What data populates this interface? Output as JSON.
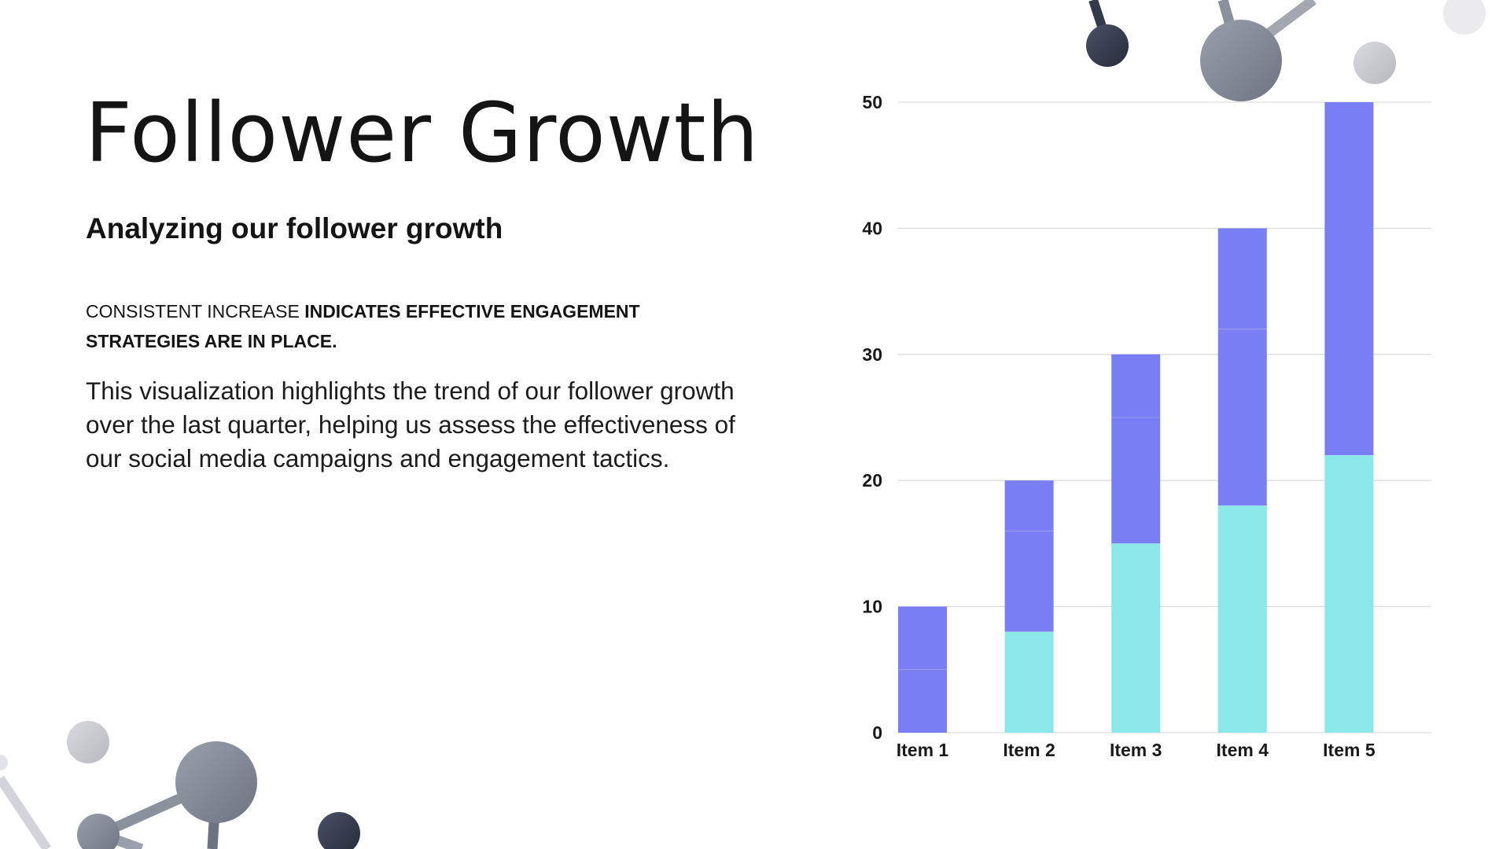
{
  "slide": {
    "title": "Follower Growth",
    "subtitle": "Analyzing our follower growth",
    "headline_regular": "CONSISTENT INCREASE ",
    "headline_bold": "INDICATES EFFECTIVE ENGAGEMENT STRATEGIES ARE IN PLACE.",
    "body": "This visualization highlights the trend of our follower growth over the last quarter, helping us assess the effectiveness of our social media campaigns and engagement tactics."
  },
  "colors": {
    "series_bottom": "#8ae8e8",
    "series_top": "#7a7ef4",
    "gridline": "#dedede",
    "axis_text": "#1a1a1a",
    "decoration_dark": "#333a4c",
    "decoration_mid": "#8a909c",
    "decoration_light": "#c6c8ce"
  },
  "chart_data": {
    "type": "bar",
    "stacked": true,
    "categories": [
      "Item 1",
      "Item 2",
      "Item 3",
      "Item 4",
      "Item 5"
    ],
    "series": [
      {
        "values": [
          0,
          8,
          15,
          18,
          22
        ],
        "color": "#8ae8e8"
      },
      {
        "values": [
          5,
          8,
          10,
          14,
          28
        ],
        "color": "#7a7ef4"
      },
      {
        "values": [
          5,
          4,
          5,
          8,
          0
        ],
        "color": "#7a7ef4"
      }
    ],
    "totals": [
      10,
      20,
      30,
      40,
      50
    ],
    "ylim": [
      0,
      50
    ],
    "yticks": [
      0,
      10,
      20,
      30,
      40,
      50
    ],
    "grid": true,
    "legend": "none",
    "title": "",
    "xlabel": "",
    "ylabel": ""
  }
}
